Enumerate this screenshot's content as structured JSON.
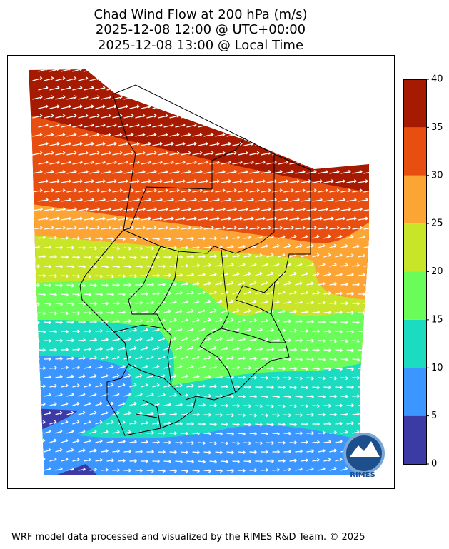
{
  "title": [
    "Chad Wind Flow at 200 hPa (m/s)",
    "2025-12-08 12:00 @ UTC+00:00",
    "2025-12-08 13:00 @ Local Time"
  ],
  "colorbar": {
    "ticks": [
      0,
      5,
      10,
      15,
      20,
      25,
      30,
      35,
      40
    ],
    "colors": [
      "#3c3ba6",
      "#3b96ff",
      "#1bdcc0",
      "#6afd5a",
      "#c9e52a",
      "#fca535",
      "#e84e0f",
      "#a51a00"
    ]
  },
  "logo": "RIMES",
  "footer": "WRF model data processed and visualized by the RIMES R&D Team. © 2025"
}
